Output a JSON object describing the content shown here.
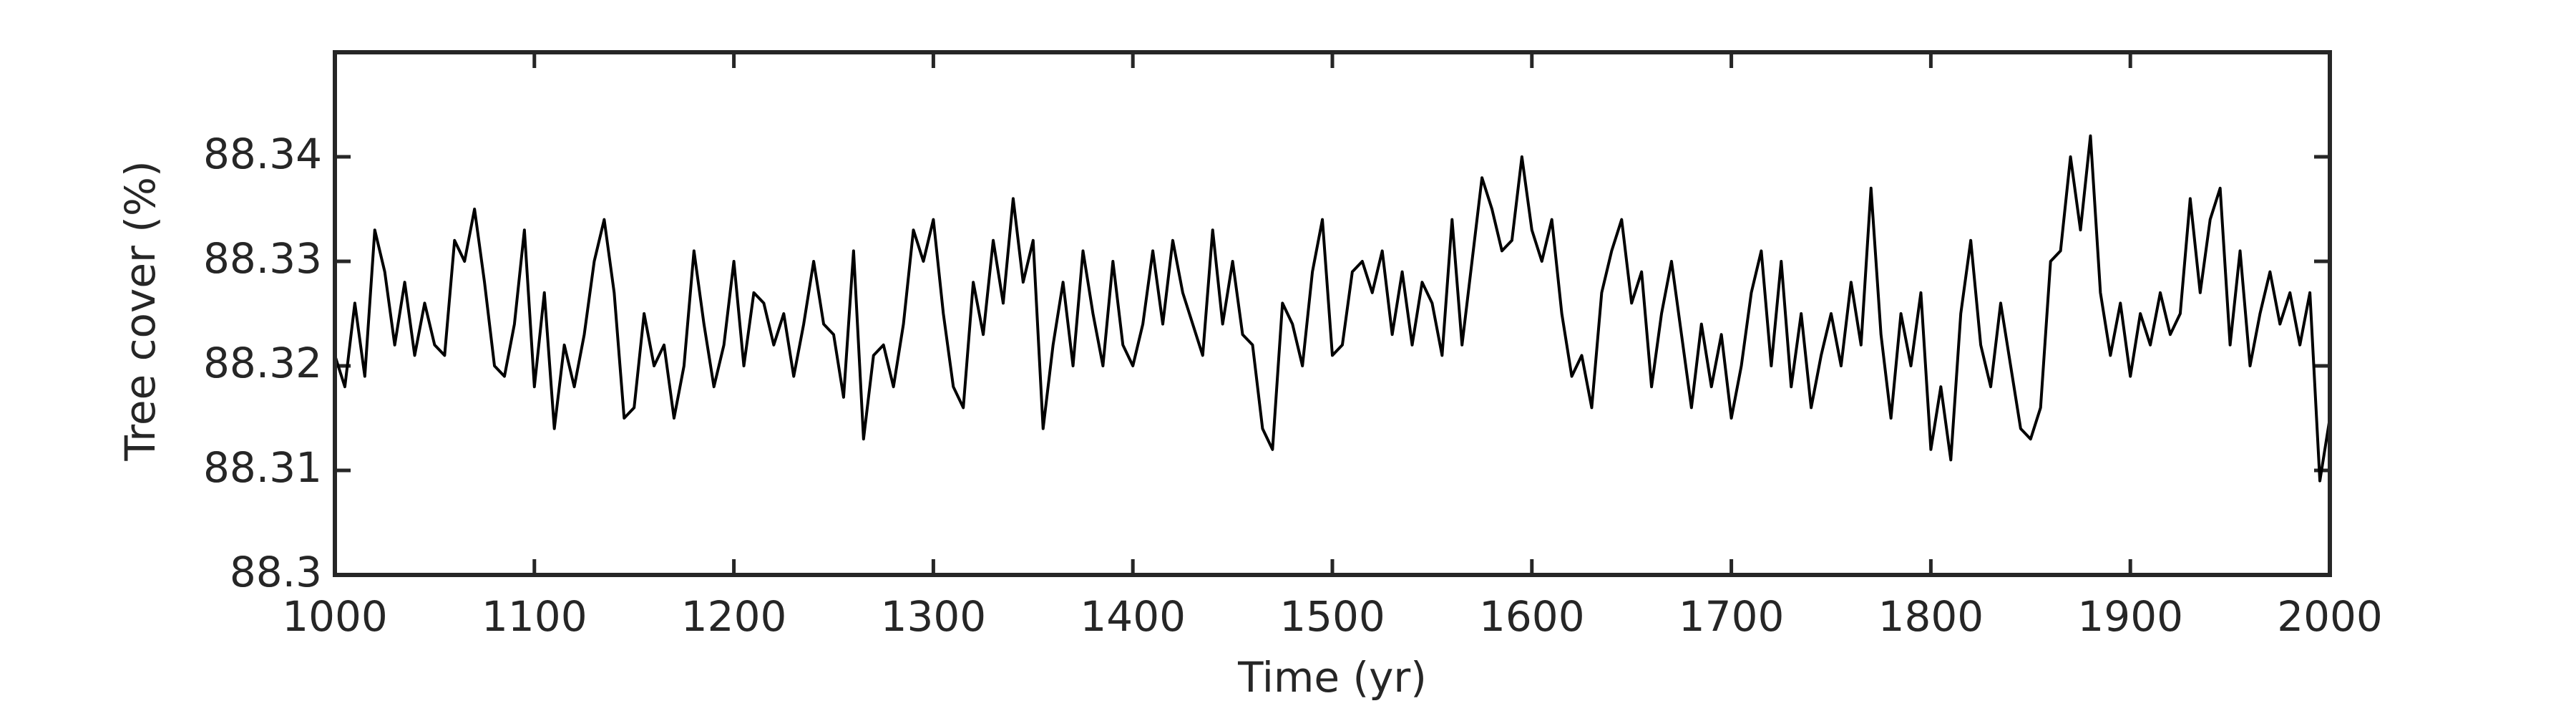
{
  "chart_data": {
    "type": "line",
    "xlabel": "Time (yr)",
    "ylabel": "Tree cover (%)",
    "color": "#000000",
    "xlim": [
      1000,
      2000
    ],
    "ylim": [
      88.3,
      88.35
    ],
    "xticks": [
      1000,
      1100,
      1200,
      1300,
      1400,
      1500,
      1600,
      1700,
      1800,
      1900,
      2000
    ],
    "yticks": [
      88.3,
      88.31,
      88.32,
      88.33,
      88.34
    ],
    "grid": false,
    "x": [
      1000,
      1005,
      1010,
      1015,
      1020,
      1025,
      1030,
      1035,
      1040,
      1045,
      1050,
      1055,
      1060,
      1065,
      1070,
      1075,
      1080,
      1085,
      1090,
      1095,
      1100,
      1105,
      1110,
      1115,
      1120,
      1125,
      1130,
      1135,
      1140,
      1145,
      1150,
      1155,
      1160,
      1165,
      1170,
      1175,
      1180,
      1185,
      1190,
      1195,
      1200,
      1205,
      1210,
      1215,
      1220,
      1225,
      1230,
      1235,
      1240,
      1245,
      1250,
      1255,
      1260,
      1265,
      1270,
      1275,
      1280,
      1285,
      1290,
      1295,
      1300,
      1305,
      1310,
      1315,
      1320,
      1325,
      1330,
      1335,
      1340,
      1345,
      1350,
      1355,
      1360,
      1365,
      1370,
      1375,
      1380,
      1385,
      1390,
      1395,
      1400,
      1405,
      1410,
      1415,
      1420,
      1425,
      1430,
      1435,
      1440,
      1445,
      1450,
      1455,
      1460,
      1465,
      1470,
      1475,
      1480,
      1485,
      1490,
      1495,
      1500,
      1505,
      1510,
      1515,
      1520,
      1525,
      1530,
      1535,
      1540,
      1545,
      1550,
      1555,
      1560,
      1565,
      1570,
      1575,
      1580,
      1585,
      1590,
      1595,
      1600,
      1605,
      1610,
      1615,
      1620,
      1625,
      1630,
      1635,
      1640,
      1645,
      1650,
      1655,
      1660,
      1665,
      1670,
      1675,
      1680,
      1685,
      1690,
      1695,
      1700,
      1705,
      1710,
      1715,
      1720,
      1725,
      1730,
      1735,
      1740,
      1745,
      1750,
      1755,
      1760,
      1765,
      1770,
      1775,
      1780,
      1785,
      1790,
      1795,
      1800,
      1805,
      1810,
      1815,
      1820,
      1825,
      1830,
      1835,
      1840,
      1845,
      1850,
      1855,
      1860,
      1865,
      1870,
      1875,
      1880,
      1885,
      1890,
      1895,
      1900,
      1905,
      1910,
      1915,
      1920,
      1925,
      1930,
      1935,
      1940,
      1945,
      1950,
      1955,
      1960,
      1965,
      1970,
      1975,
      1980,
      1985,
      1990,
      1995,
      2000
    ],
    "values": [
      88.321,
      88.318,
      88.326,
      88.319,
      88.333,
      88.329,
      88.322,
      88.328,
      88.321,
      88.326,
      88.322,
      88.321,
      88.332,
      88.33,
      88.335,
      88.328,
      88.32,
      88.319,
      88.324,
      88.333,
      88.318,
      88.327,
      88.314,
      88.322,
      88.318,
      88.323,
      88.33,
      88.334,
      88.327,
      88.315,
      88.316,
      88.325,
      88.32,
      88.322,
      88.315,
      88.32,
      88.331,
      88.324,
      88.318,
      88.322,
      88.33,
      88.32,
      88.327,
      88.326,
      88.322,
      88.325,
      88.319,
      88.324,
      88.33,
      88.324,
      88.323,
      88.317,
      88.331,
      88.313,
      88.321,
      88.322,
      88.318,
      88.324,
      88.333,
      88.33,
      88.334,
      88.325,
      88.318,
      88.316,
      88.328,
      88.323,
      88.332,
      88.326,
      88.336,
      88.328,
      88.332,
      88.314,
      88.322,
      88.328,
      88.32,
      88.331,
      88.325,
      88.32,
      88.33,
      88.322,
      88.32,
      88.324,
      88.331,
      88.324,
      88.332,
      88.327,
      88.324,
      88.321,
      88.333,
      88.324,
      88.33,
      88.323,
      88.322,
      88.314,
      88.312,
      88.326,
      88.324,
      88.32,
      88.329,
      88.334,
      88.321,
      88.322,
      88.329,
      88.33,
      88.327,
      88.331,
      88.323,
      88.329,
      88.322,
      88.328,
      88.326,
      88.321,
      88.334,
      88.322,
      88.33,
      88.338,
      88.335,
      88.331,
      88.332,
      88.34,
      88.333,
      88.33,
      88.334,
      88.325,
      88.319,
      88.321,
      88.316,
      88.327,
      88.331,
      88.334,
      88.326,
      88.329,
      88.318,
      88.325,
      88.33,
      88.323,
      88.316,
      88.324,
      88.318,
      88.323,
      88.315,
      88.32,
      88.327,
      88.331,
      88.32,
      88.33,
      88.318,
      88.325,
      88.316,
      88.321,
      88.325,
      88.32,
      88.328,
      88.322,
      88.337,
      88.323,
      88.315,
      88.325,
      88.32,
      88.327,
      88.312,
      88.318,
      88.311,
      88.325,
      88.332,
      88.322,
      88.318,
      88.326,
      88.32,
      88.314,
      88.313,
      88.316,
      88.33,
      88.331,
      88.34,
      88.333,
      88.342,
      88.327,
      88.321,
      88.326,
      88.319,
      88.325,
      88.322,
      88.327,
      88.323,
      88.325,
      88.336,
      88.327,
      88.334,
      88.337,
      88.322,
      88.331,
      88.32,
      88.325,
      88.329,
      88.324,
      88.327,
      88.322,
      88.327,
      88.309,
      88.315
    ]
  }
}
